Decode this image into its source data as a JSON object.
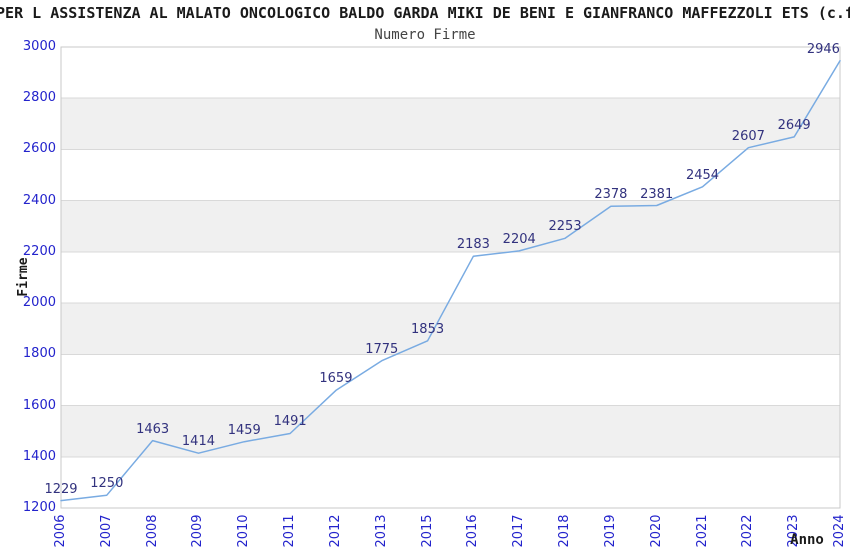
{
  "page": {
    "title": "PER L ASSISTENZA AL MALATO ONCOLOGICO BALDO GARDA MIKI DE BENI E GIANFRANCO MAFFEZZOLI ETS (c.f"
  },
  "chart_data": {
    "type": "line",
    "title": "Numero Firme",
    "xlabel": "Anno",
    "ylabel": "Firme",
    "categories": [
      "2006",
      "2007",
      "2008",
      "2009",
      "2010",
      "2011",
      "2012",
      "2013",
      "2015",
      "2016",
      "2017",
      "2018",
      "2019",
      "2020",
      "2021",
      "2022",
      "2023",
      "2024"
    ],
    "values": [
      1229,
      1250,
      1463,
      1414,
      1459,
      1491,
      1659,
      1775,
      1853,
      2183,
      2204,
      2253,
      2378,
      2381,
      2454,
      2607,
      2649,
      2946
    ],
    "ylim": [
      1200,
      3000
    ],
    "ytick_step": 200,
    "grid": "alternating-horizontal-bands",
    "legend_position": "none",
    "data_labels": true,
    "colors": {
      "line": "#79abe2",
      "data_label": "#32327e",
      "tick_label": "#2323cc",
      "band": "#f0f0f0",
      "gridline": "#d9d9d9",
      "plot_border": "#c9c9c9",
      "title": "#1a1a1a",
      "subtitle": "#444444",
      "axis_title": "#1a1a1a"
    }
  }
}
